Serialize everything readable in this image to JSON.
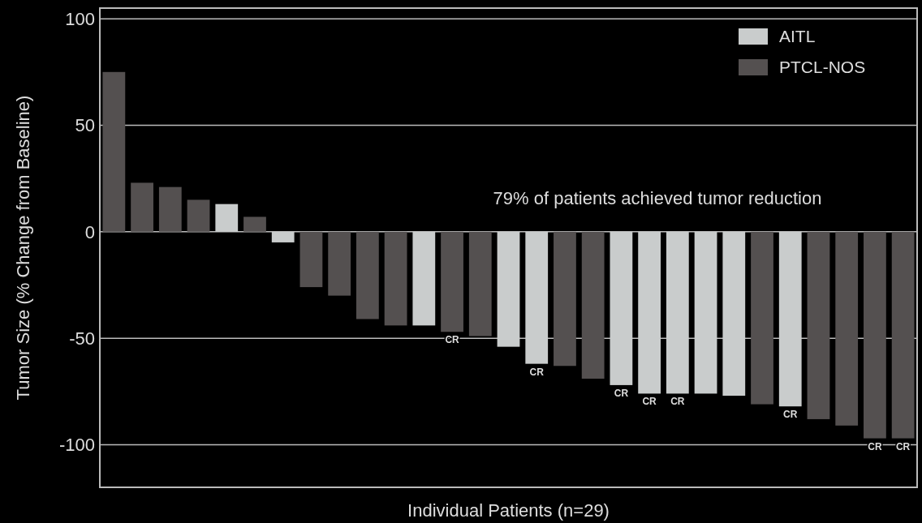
{
  "chart_data": {
    "type": "bar",
    "xlabel": "Individual Patients (n=29)",
    "ylabel": "Tumor Size (% Change from Baseline)",
    "categories": [
      null,
      null,
      null,
      null,
      null,
      null,
      null,
      null,
      null,
      null,
      null,
      null,
      null,
      null,
      null,
      null,
      null,
      null,
      null,
      null,
      null,
      null,
      null,
      null,
      null,
      null,
      null,
      null,
      null
    ],
    "series": [
      {
        "name": "AITL",
        "color": "#c9cccc",
        "values": [
          null,
          null,
          null,
          null,
          13,
          null,
          -5,
          null,
          null,
          null,
          null,
          -44,
          null,
          null,
          -54,
          -62,
          null,
          null,
          -72,
          -76,
          -76,
          -76,
          -77,
          null,
          -82,
          null,
          null,
          null,
          null
        ],
        "value_labels": [
          null,
          null,
          null,
          null,
          null,
          null,
          null,
          null,
          null,
          null,
          null,
          null,
          null,
          null,
          null,
          "CR",
          null,
          null,
          "CR",
          "CR",
          "CR",
          null,
          null,
          null,
          "CR",
          null,
          null,
          null,
          null
        ]
      },
      {
        "name": "PTCL-NOS",
        "color": "#545050",
        "values": [
          75,
          23,
          21,
          15,
          null,
          7,
          null,
          -26,
          -30,
          -41,
          -44,
          null,
          -47,
          -49,
          null,
          null,
          -63,
          -69,
          null,
          null,
          null,
          null,
          null,
          -81,
          null,
          -88,
          -91,
          -97,
          -97
        ],
        "value_labels": [
          null,
          null,
          null,
          null,
          null,
          null,
          null,
          null,
          null,
          null,
          null,
          null,
          "CR",
          null,
          null,
          null,
          null,
          null,
          null,
          null,
          null,
          null,
          null,
          null,
          null,
          null,
          null,
          "CR",
          "CR"
        ]
      }
    ],
    "ylim": [
      -120,
      105
    ],
    "yticks": [
      -100,
      -50,
      0,
      50,
      100
    ],
    "grid": "y",
    "legend": "top right",
    "annotations": [
      "79% of patients achieved tumor reduction"
    ]
  }
}
